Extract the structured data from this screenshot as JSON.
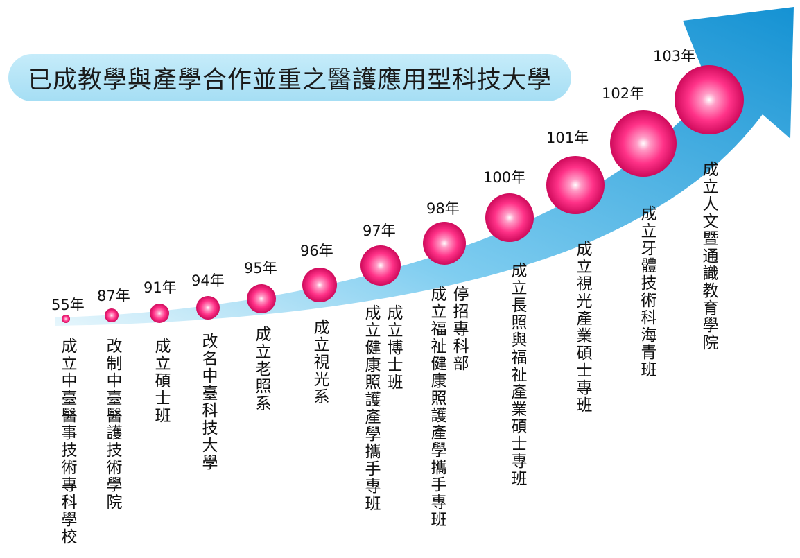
{
  "title": "已成教學與產學合作並重之醫護應用型科技大學",
  "colors": {
    "arrow_light": "#d8f1fb",
    "arrow_dark": "#1a9ad6",
    "ball_highlight": "#ffffff",
    "ball_mid": "#ff3f8f",
    "ball_dark": "#c70050",
    "title_bg": "#b3e4f6"
  },
  "milestones": [
    {
      "year": "55年",
      "lines": [
        "成立中臺醫事技術專科學校"
      ]
    },
    {
      "year": "87年",
      "lines": [
        "改制中臺醫護技術學院"
      ]
    },
    {
      "year": "91年",
      "lines": [
        "成立碩士班"
      ]
    },
    {
      "year": "94年",
      "lines": [
        "改名中臺科技大學"
      ]
    },
    {
      "year": "95年",
      "lines": [
        "成立老照系"
      ]
    },
    {
      "year": "96年",
      "lines": [
        "成立視光系"
      ]
    },
    {
      "year": "97年",
      "lines": [
        "成立博士班",
        "成立健康照護產學攜手專班"
      ]
    },
    {
      "year": "98年",
      "lines": [
        "停招專科部",
        "成立福祉健康照護產學攜手專班"
      ]
    },
    {
      "year": "100年",
      "lines": [
        "成立長照與福祉產業碩士專班"
      ]
    },
    {
      "year": "101年",
      "lines": [
        "成立視光產業碩士專班"
      ]
    },
    {
      "year": "102年",
      "lines": [
        "成立牙體技術科海青班"
      ]
    },
    {
      "year": "103年",
      "lines": [
        "成立人文暨通識教育學院"
      ]
    }
  ]
}
